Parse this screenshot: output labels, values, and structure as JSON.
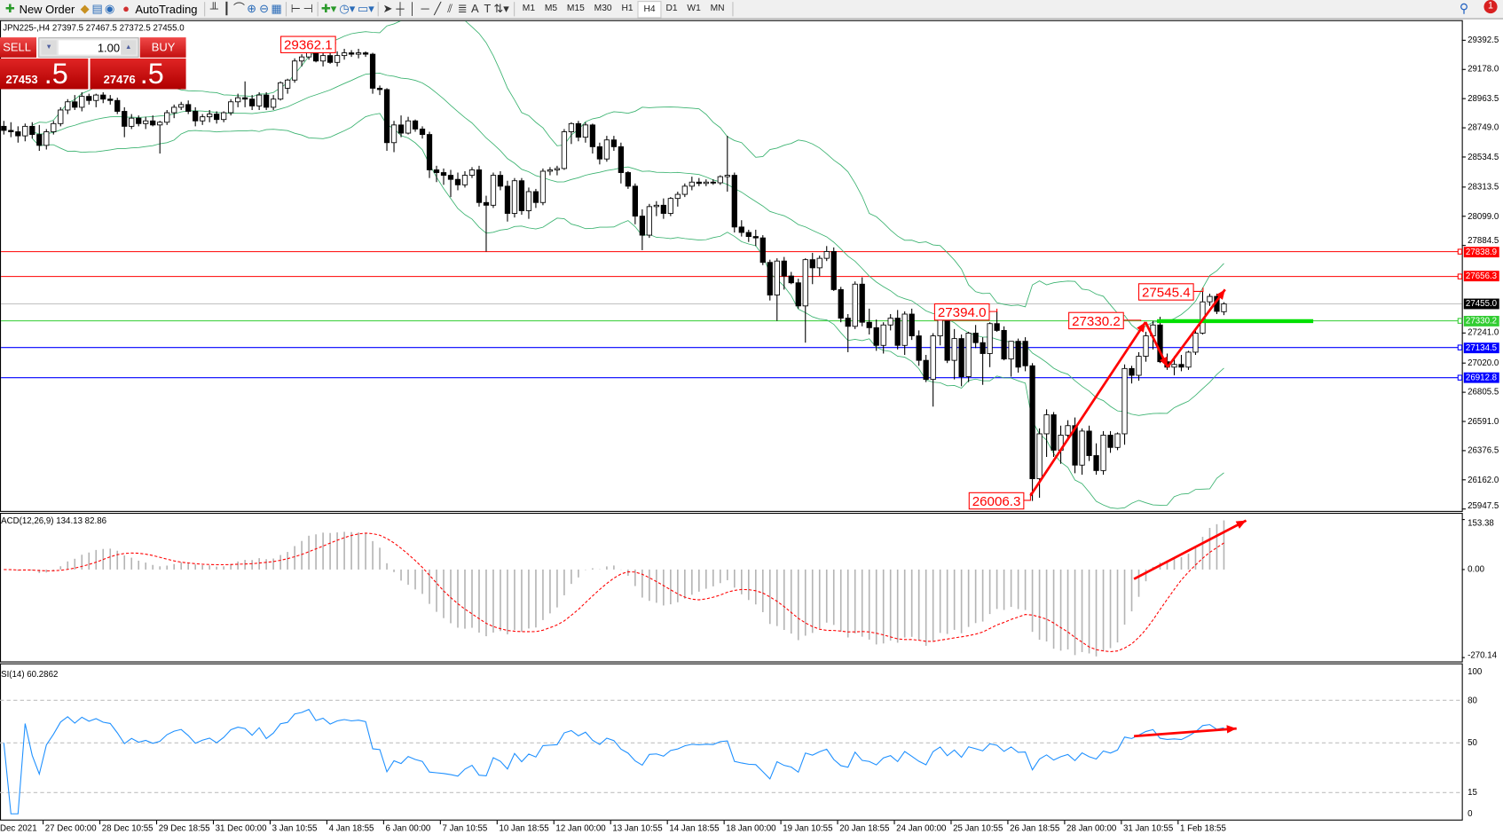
{
  "toolbar": {
    "new_order": "New Order",
    "auto_trading": "AutoTrading",
    "timeframes": [
      "M1",
      "M5",
      "M15",
      "M30",
      "H1",
      "H4",
      "D1",
      "W1",
      "MN"
    ],
    "active_timeframe": "H4",
    "notification_count": "1"
  },
  "chart_header": "JPN225-,H4  27397.5 27467.5 27372.5 27455.0",
  "trade_panel": {
    "sell_label": "SELL",
    "buy_label": "BUY",
    "lot": "1.00",
    "sell_price_main": "27453",
    "sell_price_frac": ".5",
    "buy_price_main": "27476",
    "buy_price_frac": ".5"
  },
  "colors": {
    "up_candle": "#ffffff",
    "down_candle": "#000000",
    "bands": "#3cb371",
    "annotation": "#ff0000",
    "macd_hist": "#b4b4b4",
    "macd_signal": "#ff0000",
    "rsi": "#1e90ff"
  },
  "chart_data": {
    "type": "candlestick",
    "price_axis": [
      "29392.5",
      "29178.0",
      "28963.5",
      "28749.0",
      "28534.5",
      "28313.5",
      "28099.0",
      "27884.5",
      "27241.0",
      "27020.0",
      "26805.5",
      "26591.0",
      "26376.5",
      "26162.0",
      "25947.5"
    ],
    "price_range": [
      25947.5,
      29392.5
    ],
    "ohlc": [
      [
        28760,
        28800,
        28700,
        28730
      ],
      [
        28730,
        28790,
        28680,
        28720
      ],
      [
        28720,
        28760,
        28640,
        28690
      ],
      [
        28690,
        28780,
        28650,
        28760
      ],
      [
        28760,
        28790,
        28670,
        28700
      ],
      [
        28700,
        28770,
        28580,
        28620
      ],
      [
        28620,
        28740,
        28590,
        28720
      ],
      [
        28720,
        28800,
        28700,
        28780
      ],
      [
        28780,
        28900,
        28760,
        28880
      ],
      [
        28880,
        28960,
        28850,
        28940
      ],
      [
        28940,
        28990,
        28880,
        28900
      ],
      [
        28900,
        29010,
        28870,
        28980
      ],
      [
        28980,
        29000,
        28920,
        28950
      ],
      [
        28950,
        29000,
        28900,
        28990
      ],
      [
        28990,
        29010,
        28930,
        28960
      ],
      [
        28960,
        28990,
        28920,
        28950
      ],
      [
        28950,
        28970,
        28850,
        28870
      ],
      [
        28870,
        28900,
        28680,
        28760
      ],
      [
        28760,
        28850,
        28740,
        28820
      ],
      [
        28820,
        28840,
        28760,
        28780
      ],
      [
        28780,
        28830,
        28740,
        28800
      ],
      [
        28800,
        28840,
        28760,
        28770
      ],
      [
        28770,
        28800,
        28560,
        28790
      ],
      [
        28790,
        28880,
        28770,
        28860
      ],
      [
        28860,
        28920,
        28820,
        28900
      ],
      [
        28900,
        28940,
        28880,
        28920
      ],
      [
        28920,
        28950,
        28850,
        28870
      ],
      [
        28870,
        28900,
        28760,
        28800
      ],
      [
        28800,
        28850,
        28770,
        28830
      ],
      [
        28830,
        28880,
        28790,
        28850
      ],
      [
        28850,
        28870,
        28780,
        28810
      ],
      [
        28810,
        28870,
        28790,
        28860
      ],
      [
        28860,
        28960,
        28840,
        28940
      ],
      [
        28940,
        29000,
        28900,
        28970
      ],
      [
        28970,
        29090,
        28900,
        28960
      ],
      [
        28960,
        28990,
        28880,
        28910
      ],
      [
        28910,
        29010,
        28880,
        28990
      ],
      [
        28990,
        29010,
        28880,
        28900
      ],
      [
        28900,
        28990,
        28880,
        28960
      ],
      [
        28960,
        29090,
        28950,
        29080
      ],
      [
        29040,
        29110,
        29000,
        29100
      ],
      [
        29100,
        29260,
        29080,
        29240
      ],
      [
        29240,
        29290,
        29200,
        29270
      ],
      [
        29270,
        29340,
        29250,
        29330
      ],
      [
        29330,
        29362.1,
        29230,
        29240
      ],
      [
        29240,
        29300,
        29200,
        29280
      ],
      [
        29280,
        29320,
        29220,
        29230
      ],
      [
        29230,
        29310,
        29200,
        29280
      ],
      [
        29280,
        29330,
        29250,
        29300
      ],
      [
        29300,
        29320,
        29270,
        29290
      ],
      [
        29290,
        29330,
        29260,
        29300
      ],
      [
        29300,
        29310,
        29270,
        29290
      ],
      [
        29290,
        29300,
        29000,
        29040
      ],
      [
        29040,
        29060,
        28990,
        29030
      ],
      [
        29030,
        29040,
        28580,
        28640
      ],
      [
        28640,
        28800,
        28570,
        28770
      ],
      [
        28770,
        28840,
        28680,
        28710
      ],
      [
        28710,
        28830,
        28700,
        28800
      ],
      [
        28800,
        28810,
        28720,
        28740
      ],
      [
        28740,
        28760,
        28670,
        28700
      ],
      [
        28700,
        28720,
        28380,
        28440
      ],
      [
        28440,
        28470,
        28350,
        28420
      ],
      [
        28420,
        28450,
        28330,
        28400
      ],
      [
        28400,
        28440,
        28240,
        28370
      ],
      [
        28370,
        28420,
        28290,
        28330
      ],
      [
        28330,
        28430,
        28310,
        28400
      ],
      [
        28400,
        28460,
        28380,
        28440
      ],
      [
        28440,
        28470,
        28170,
        28200
      ],
      [
        28200,
        28250,
        27840,
        28180
      ],
      [
        28180,
        28420,
        28160,
        28400
      ],
      [
        28400,
        28430,
        28290,
        28320
      ],
      [
        28320,
        28360,
        28060,
        28120
      ],
      [
        28120,
        28380,
        28090,
        28360
      ],
      [
        28360,
        28380,
        28110,
        28140
      ],
      [
        28140,
        28310,
        28080,
        28280
      ],
      [
        28280,
        28300,
        28160,
        28200
      ],
      [
        28200,
        28450,
        28180,
        28430
      ],
      [
        28430,
        28460,
        28400,
        28440
      ],
      [
        28440,
        28470,
        28400,
        28450
      ],
      [
        28450,
        28740,
        28440,
        28720
      ],
      [
        28720,
        28790,
        28630,
        28780
      ],
      [
        28780,
        28800,
        28650,
        28680
      ],
      [
        28680,
        28790,
        28640,
        28770
      ],
      [
        28770,
        28780,
        28560,
        28610
      ],
      [
        28610,
        28640,
        28480,
        28520
      ],
      [
        28520,
        28690,
        28500,
        28660
      ],
      [
        28660,
        28690,
        28580,
        28610
      ],
      [
        28610,
        28640,
        28340,
        28420
      ],
      [
        28420,
        28430,
        28300,
        28320
      ],
      [
        28320,
        28340,
        28040,
        28100
      ],
      [
        28100,
        28150,
        27850,
        27960
      ],
      [
        27960,
        28190,
        27940,
        28170
      ],
      [
        28170,
        28210,
        28100,
        28180
      ],
      [
        28180,
        28230,
        28080,
        28120
      ],
      [
        28120,
        28240,
        28100,
        28230
      ],
      [
        28230,
        28280,
        28170,
        28260
      ],
      [
        28260,
        28340,
        28240,
        28320
      ],
      [
        28320,
        28390,
        28290,
        28350
      ],
      [
        28350,
        28380,
        28320,
        28340
      ],
      [
        28340,
        28370,
        28320,
        28350
      ],
      [
        28350,
        28370,
        28330,
        28345
      ],
      [
        28345,
        28400,
        28330,
        28390
      ],
      [
        28390,
        28690,
        28280,
        28400
      ],
      [
        28400,
        28420,
        27980,
        28020
      ],
      [
        28020,
        28070,
        27950,
        27980
      ],
      [
        27980,
        28000,
        27910,
        27950
      ],
      [
        27950,
        28000,
        27880,
        27940
      ],
      [
        27940,
        27960,
        27740,
        27760
      ],
      [
        27760,
        27780,
        27480,
        27520
      ],
      [
        27520,
        27790,
        27330,
        27770
      ],
      [
        27770,
        27800,
        27560,
        27660
      ],
      [
        27660,
        27690,
        27600,
        27610
      ],
      [
        27610,
        27640,
        27420,
        27440
      ],
      [
        27440,
        27790,
        27170,
        27780
      ],
      [
        27780,
        27830,
        27600,
        27720
      ],
      [
        27720,
        27810,
        27660,
        27790
      ],
      [
        27790,
        27880,
        27770,
        27840
      ],
      [
        27840,
        27870,
        27550,
        27560
      ],
      [
        27560,
        27580,
        27320,
        27350
      ],
      [
        27350,
        27380,
        27100,
        27290
      ],
      [
        27290,
        27620,
        27270,
        27600
      ],
      [
        27600,
        27650,
        27290,
        27320
      ],
      [
        27320,
        27420,
        27230,
        27280
      ],
      [
        27280,
        27340,
        27110,
        27150
      ],
      [
        27150,
        27320,
        27090,
        27300
      ],
      [
        27300,
        27380,
        27260,
        27350
      ],
      [
        27350,
        27410,
        27120,
        27150
      ],
      [
        27150,
        27400,
        27080,
        27380
      ],
      [
        27380,
        27420,
        27190,
        27220
      ],
      [
        27220,
        27260,
        27000,
        27040
      ],
      [
        27040,
        27080,
        26880,
        26900
      ],
      [
        26900,
        27240,
        26700,
        27220
      ],
      [
        27220,
        27400,
        27150,
        27350
      ],
      [
        27350,
        27394,
        27020,
        27040
      ],
      [
        27040,
        27270,
        26900,
        27200
      ],
      [
        27200,
        27230,
        26850,
        26920
      ],
      [
        26920,
        27250,
        26880,
        27240
      ],
      [
        27240,
        27300,
        27130,
        27170
      ],
      [
        27170,
        27210,
        26860,
        27090
      ],
      [
        27090,
        27320,
        26990,
        27310
      ],
      [
        27310,
        27400,
        27250,
        27260
      ],
      [
        27260,
        27290,
        27040,
        27050
      ],
      [
        27050,
        27180,
        26920,
        27180
      ],
      [
        27180,
        27200,
        26950,
        26990
      ],
      [
        27180,
        27210,
        26960,
        27000
      ],
      [
        27000,
        27020,
        26006.3,
        26170
      ],
      [
        26170,
        26540,
        26030,
        26500
      ],
      [
        26500,
        26680,
        26330,
        26640
      ],
      [
        26640,
        26660,
        26330,
        26380
      ],
      [
        26380,
        26560,
        26280,
        26490
      ],
      [
        26490,
        26600,
        26450,
        26560
      ],
      [
        26560,
        26620,
        26210,
        26270
      ],
      [
        26270,
        26540,
        26200,
        26520
      ],
      [
        26520,
        26560,
        26300,
        26340
      ],
      [
        26340,
        26430,
        26200,
        26230
      ],
      [
        26230,
        26520,
        26200,
        26490
      ],
      [
        26490,
        26520,
        26360,
        26400
      ],
      [
        26400,
        26510,
        26380,
        26500
      ],
      [
        26500,
        27010,
        26420,
        26980
      ],
      [
        26980,
        27000,
        26870,
        26930
      ],
      [
        26930,
        27100,
        26890,
        27070
      ],
      [
        27070,
        27250,
        27030,
        27220
      ],
      [
        27220,
        27330,
        27120,
        27300
      ],
      [
        27300,
        27360,
        27020,
        27030
      ],
      [
        27030,
        27090,
        26970,
        26990
      ],
      [
        26990,
        27070,
        26930,
        27010
      ],
      [
        27010,
        27080,
        26960,
        26990
      ],
      [
        26990,
        27110,
        26970,
        27100
      ],
      [
        27100,
        27260,
        27080,
        27240
      ],
      [
        27240,
        27545.4,
        27230,
        27470
      ],
      [
        27470,
        27530,
        27440,
        27510
      ],
      [
        27510,
        27530,
        27380,
        27400
      ],
      [
        27397.5,
        27467.5,
        27372.5,
        27455.0
      ]
    ],
    "horizontal_lines": [
      {
        "price": 27838.9,
        "label": "27838.9",
        "color": "#ff0000"
      },
      {
        "price": 27656.3,
        "label": "27656.3",
        "color": "#ff0000"
      },
      {
        "price": 27455.0,
        "label": "27455.0",
        "color": "#000000",
        "line_color": "#c0c0c0"
      },
      {
        "price": 27330.2,
        "label": "27330.2",
        "color": "#32cd32"
      },
      {
        "price": 27134.5,
        "label": "27134.5",
        "color": "#0000ff"
      },
      {
        "price": 26912.8,
        "label": "26912.8",
        "color": "#0000ff"
      }
    ],
    "annotations": [
      "29362.1",
      "27394.0",
      "27330.2",
      "27545.4",
      "26006.3"
    ],
    "time_labels": [
      "Dec 2021",
      "27 Dec 00:00",
      "28 Dec 10:55",
      "29 Dec 18:55",
      "31 Dec 00:00",
      "3 Jan 10:55",
      "4 Jan 18:55",
      "6 Jan 00:00",
      "7 Jan 10:55",
      "10 Jan 18:55",
      "12 Jan 00:00",
      "13 Jan 10:55",
      "14 Jan 18:55",
      "18 Jan 00:00",
      "19 Jan 10:55",
      "20 Jan 18:55",
      "24 Jan 00:00",
      "25 Jan 10:55",
      "26 Jan 18:55",
      "28 Jan 00:00",
      "31 Jan 10:55",
      "1 Feb 18:55"
    ],
    "macd": {
      "label": "ACD(12,26,9) 134.13 82.86",
      "axis": [
        "153.38",
        "0.00",
        "-270.14"
      ],
      "range": [
        -270.14,
        153.38
      ]
    },
    "rsi": {
      "label": "SI(14) 60.2862",
      "axis": [
        "100",
        "80",
        "50",
        "15",
        "0"
      ],
      "levels": [
        80,
        50,
        15
      ]
    }
  }
}
